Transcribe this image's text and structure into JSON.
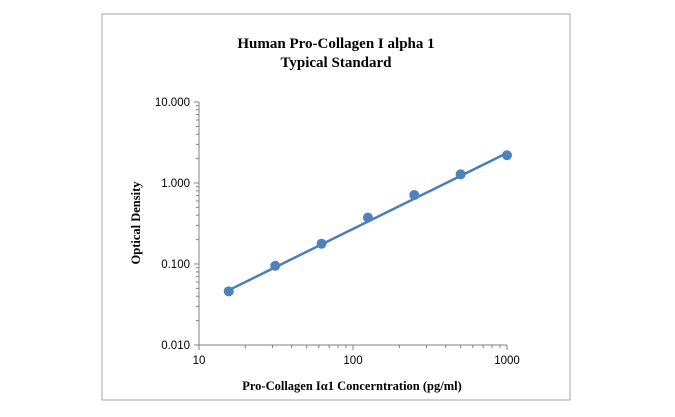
{
  "chart_data": {
    "type": "scatter",
    "title_lines": [
      "Human Pro-Collagen I alpha 1",
      "Typical Standard"
    ],
    "xlabel": "Pro-Collagen Iα1 Concerntration (pg/ml)",
    "ylabel": "Optical Density",
    "x_scale": "log",
    "y_scale": "log",
    "xlim": [
      10,
      1000
    ],
    "ylim": [
      0.01,
      10
    ],
    "x_tick_labels": [
      "10",
      "100",
      "1000"
    ],
    "x_tick_values": [
      10,
      100,
      1000
    ],
    "y_tick_labels": [
      "0.010",
      "0.100",
      "1.000",
      "10.000"
    ],
    "y_tick_values": [
      0.01,
      0.1,
      1,
      10
    ],
    "series": [
      {
        "name": "Standard",
        "x": [
          15.6,
          31.25,
          62.5,
          125,
          250,
          500,
          1000
        ],
        "y": [
          0.046,
          0.095,
          0.178,
          0.375,
          0.71,
          1.28,
          2.2
        ]
      }
    ],
    "trendline": {
      "type": "power",
      "x_start": 15.6,
      "x_end": 1000,
      "y_start": 0.0475,
      "y_end": 2.35
    },
    "colors": {
      "marker": "#4f81bd",
      "line": "#4a7ebb",
      "axis": "#808080",
      "border": "#a6a6a6"
    },
    "legend": "none",
    "grid": false
  }
}
